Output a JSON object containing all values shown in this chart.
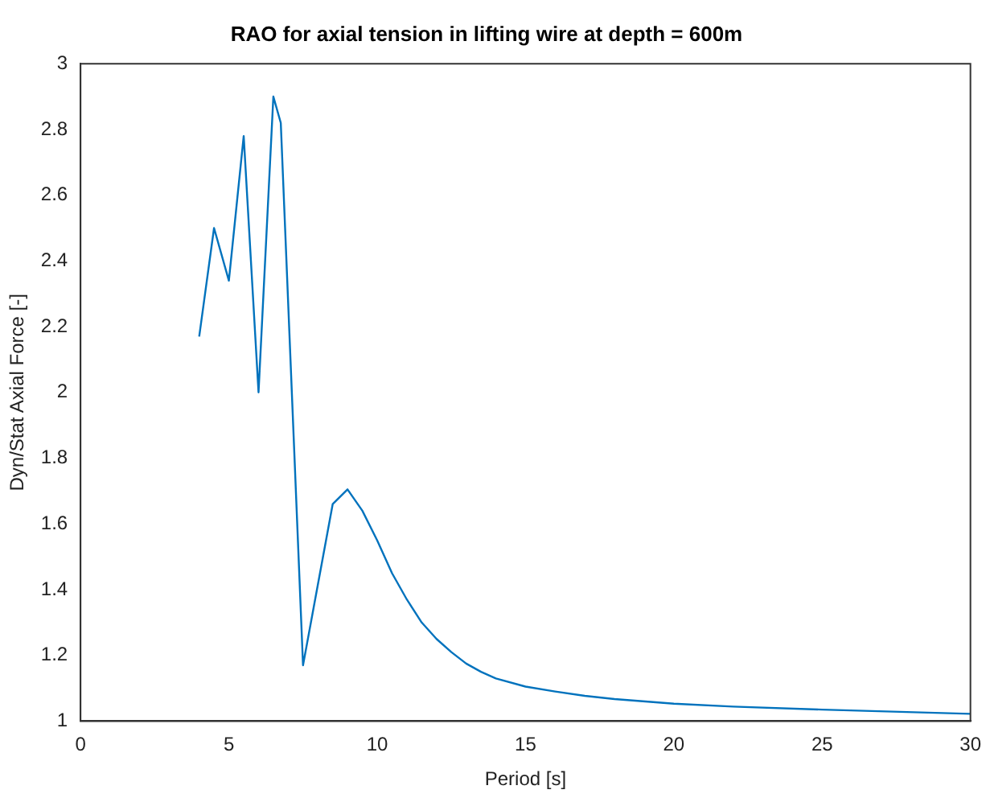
{
  "chart_data": {
    "type": "line",
    "title": "RAO for axial tension in lifting wire at depth = 600m",
    "xlabel": "Period [s]",
    "ylabel": "Dyn/Stat Axial Force [-]",
    "series": [
      {
        "color": "#0072bd",
        "x": [
          4,
          4.5,
          5,
          5.5,
          6,
          6.5,
          6.75,
          7.5,
          8.5,
          9,
          9.5,
          10,
          10.5,
          11,
          11.5,
          12,
          12.5,
          13,
          13.5,
          14,
          15,
          16,
          17,
          18,
          20,
          22,
          25,
          30
        ],
        "values": [
          2.17,
          2.5,
          2.34,
          2.78,
          2.0,
          2.9,
          2.82,
          1.17,
          1.66,
          1.705,
          1.64,
          1.55,
          1.45,
          1.37,
          1.3,
          1.25,
          1.21,
          1.175,
          1.15,
          1.13,
          1.105,
          1.09,
          1.077,
          1.067,
          1.053,
          1.044,
          1.035,
          1.022
        ]
      }
    ],
    "xlim": [
      0,
      30
    ],
    "xticks": [
      0,
      5,
      10,
      15,
      20,
      25,
      30
    ],
    "ylim": [
      1,
      3
    ],
    "yticks": [
      1,
      1.2,
      1.4,
      1.6,
      1.8,
      2,
      2.2,
      2.4,
      2.6,
      2.8,
      3
    ],
    "grid": false,
    "legend": false,
    "marker": "none",
    "line_style": "solid"
  }
}
